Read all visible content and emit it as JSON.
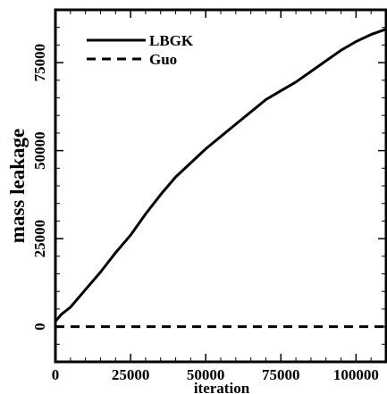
{
  "chart_data": {
    "type": "line",
    "title": "",
    "xlabel": "iteration",
    "ylabel": "mass leakage",
    "xlim": [
      0,
      110000
    ],
    "ylim": [
      -10000,
      90000
    ],
    "x_ticks": [
      0,
      25000,
      50000,
      75000,
      100000
    ],
    "y_ticks": [
      0,
      25000,
      50000,
      75000
    ],
    "grid": false,
    "legend": {
      "position": "top-left",
      "entries": [
        {
          "name": "LBGK",
          "style": "solid"
        },
        {
          "name": "Guo",
          "style": "dashed"
        }
      ]
    },
    "series": [
      {
        "name": "LBGK",
        "style": "solid",
        "color": "#000000",
        "x": [
          0,
          2000,
          5000,
          10000,
          15000,
          20000,
          25000,
          30000,
          35000,
          40000,
          45000,
          50000,
          55000,
          60000,
          65000,
          70000,
          75000,
          80000,
          85000,
          90000,
          95000,
          100000,
          105000,
          110000
        ],
        "y": [
          1500,
          3500,
          5500,
          10500,
          15500,
          21000,
          26000,
          32000,
          37500,
          42500,
          46500,
          50500,
          54000,
          57500,
          61000,
          64500,
          67000,
          69500,
          72500,
          75500,
          78500,
          81000,
          83000,
          84500
        ]
      },
      {
        "name": "Guo",
        "style": "dashed",
        "color": "#000000",
        "x": [
          0,
          110000
        ],
        "y": [
          0,
          0
        ]
      }
    ]
  }
}
